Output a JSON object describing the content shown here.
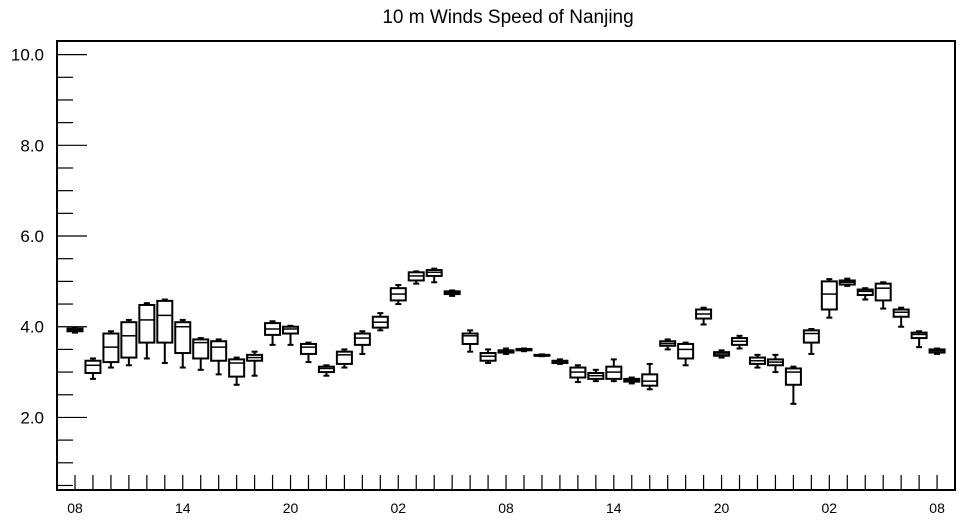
{
  "chart_data": {
    "type": "box",
    "title": "10 m Winds Speed of Nanjing",
    "xlabel": "",
    "ylabel": "",
    "ylim": [
      0.4,
      10.3
    ],
    "yticks": [
      2.0,
      4.0,
      6.0,
      8.0,
      10.0
    ],
    "yticklabels": [
      "2.0",
      "4.0",
      "6.0",
      "8.0",
      "10.0"
    ],
    "xticklabels": [
      "08",
      "14",
      "20",
      "02",
      "08",
      "14",
      "20",
      "02",
      "08"
    ],
    "x_label_hours": [
      0,
      6,
      12,
      18,
      24,
      30,
      36,
      42,
      48
    ],
    "grid": false,
    "boxes": [
      {
        "hour": 0,
        "min": 3.87,
        "q1": 3.9,
        "median": 3.93,
        "q3": 3.96,
        "max": 3.98
      },
      {
        "hour": 1,
        "min": 2.85,
        "q1": 2.98,
        "median": 3.15,
        "q3": 3.25,
        "max": 3.3
      },
      {
        "hour": 2,
        "min": 3.1,
        "q1": 3.22,
        "median": 3.55,
        "q3": 3.85,
        "max": 3.9
      },
      {
        "hour": 3,
        "min": 3.15,
        "q1": 3.32,
        "median": 3.8,
        "q3": 4.1,
        "max": 4.15
      },
      {
        "hour": 4,
        "min": 3.3,
        "q1": 3.65,
        "median": 4.15,
        "q3": 4.48,
        "max": 4.52
      },
      {
        "hour": 5,
        "min": 3.2,
        "q1": 3.65,
        "median": 4.25,
        "q3": 4.57,
        "max": 4.6
      },
      {
        "hour": 6,
        "min": 3.1,
        "q1": 3.42,
        "median": 4.0,
        "q3": 4.1,
        "max": 4.15
      },
      {
        "hour": 7,
        "min": 3.05,
        "q1": 3.3,
        "median": 3.65,
        "q3": 3.72,
        "max": 3.75
      },
      {
        "hour": 8,
        "min": 2.95,
        "q1": 3.25,
        "median": 3.55,
        "q3": 3.68,
        "max": 3.72
      },
      {
        "hour": 9,
        "min": 2.72,
        "q1": 2.9,
        "median": 3.2,
        "q3": 3.28,
        "max": 3.32
      },
      {
        "hour": 10,
        "min": 2.92,
        "q1": 3.25,
        "median": 3.32,
        "q3": 3.38,
        "max": 3.45
      },
      {
        "hour": 11,
        "min": 3.6,
        "q1": 3.82,
        "median": 3.95,
        "q3": 4.08,
        "max": 4.12
      },
      {
        "hour": 12,
        "min": 3.6,
        "q1": 3.85,
        "median": 3.95,
        "q3": 4.0,
        "max": 4.02
      },
      {
        "hour": 13,
        "min": 3.22,
        "q1": 3.4,
        "median": 3.55,
        "q3": 3.62,
        "max": 3.65
      },
      {
        "hour": 14,
        "min": 2.92,
        "q1": 3.0,
        "median": 3.08,
        "q3": 3.12,
        "max": 3.15
      },
      {
        "hour": 15,
        "min": 3.1,
        "q1": 3.18,
        "median": 3.38,
        "q3": 3.45,
        "max": 3.5
      },
      {
        "hour": 16,
        "min": 3.4,
        "q1": 3.6,
        "median": 3.75,
        "q3": 3.85,
        "max": 3.9
      },
      {
        "hour": 17,
        "min": 3.92,
        "q1": 3.98,
        "median": 4.1,
        "q3": 4.22,
        "max": 4.3
      },
      {
        "hour": 18,
        "min": 4.5,
        "q1": 4.58,
        "median": 4.72,
        "q3": 4.85,
        "max": 4.92
      },
      {
        "hour": 19,
        "min": 4.95,
        "q1": 5.02,
        "median": 5.12,
        "q3": 5.2,
        "max": 5.22
      },
      {
        "hour": 20,
        "min": 4.98,
        "q1": 5.12,
        "median": 5.2,
        "q3": 5.25,
        "max": 5.28
      },
      {
        "hour": 21,
        "min": 4.68,
        "q1": 4.72,
        "median": 4.75,
        "q3": 4.78,
        "max": 4.8
      },
      {
        "hour": 22,
        "min": 3.45,
        "q1": 3.62,
        "median": 3.8,
        "q3": 3.85,
        "max": 3.92
      },
      {
        "hour": 23,
        "min": 3.2,
        "q1": 3.25,
        "median": 3.35,
        "q3": 3.42,
        "max": 3.5
      },
      {
        "hour": 24,
        "min": 3.4,
        "q1": 3.43,
        "median": 3.46,
        "q3": 3.48,
        "max": 3.52
      },
      {
        "hour": 25,
        "min": 3.46,
        "q1": 3.48,
        "median": 3.5,
        "q3": 3.51,
        "max": 3.52
      },
      {
        "hour": 26,
        "min": 3.35,
        "q1": 3.36,
        "median": 3.37,
        "q3": 3.38,
        "max": 3.39
      },
      {
        "hour": 27,
        "min": 3.18,
        "q1": 3.2,
        "median": 3.22,
        "q3": 3.25,
        "max": 3.28
      },
      {
        "hour": 28,
        "min": 2.78,
        "q1": 2.88,
        "median": 3.0,
        "q3": 3.1,
        "max": 3.15
      },
      {
        "hour": 29,
        "min": 2.8,
        "q1": 2.85,
        "median": 2.92,
        "q3": 2.98,
        "max": 3.05
      },
      {
        "hour": 30,
        "min": 2.8,
        "q1": 2.85,
        "median": 3.0,
        "q3": 3.12,
        "max": 3.28
      },
      {
        "hour": 31,
        "min": 2.75,
        "q1": 2.79,
        "median": 2.82,
        "q3": 2.85,
        "max": 2.88
      },
      {
        "hour": 32,
        "min": 2.62,
        "q1": 2.7,
        "median": 2.8,
        "q3": 2.95,
        "max": 3.18
      },
      {
        "hour": 33,
        "min": 3.5,
        "q1": 3.58,
        "median": 3.63,
        "q3": 3.68,
        "max": 3.72
      },
      {
        "hour": 34,
        "min": 3.15,
        "q1": 3.3,
        "median": 3.5,
        "q3": 3.62,
        "max": 3.65
      },
      {
        "hour": 35,
        "min": 4.05,
        "q1": 4.18,
        "median": 4.28,
        "q3": 4.38,
        "max": 4.42
      },
      {
        "hour": 36,
        "min": 3.32,
        "q1": 3.36,
        "median": 3.4,
        "q3": 3.44,
        "max": 3.48
      },
      {
        "hour": 37,
        "min": 3.52,
        "q1": 3.6,
        "median": 3.68,
        "q3": 3.75,
        "max": 3.8
      },
      {
        "hour": 38,
        "min": 3.1,
        "q1": 3.18,
        "median": 3.25,
        "q3": 3.32,
        "max": 3.38
      },
      {
        "hour": 39,
        "min": 3.0,
        "q1": 3.15,
        "median": 3.22,
        "q3": 3.28,
        "max": 3.38
      },
      {
        "hour": 40,
        "min": 2.3,
        "q1": 2.72,
        "median": 3.0,
        "q3": 3.08,
        "max": 3.12
      },
      {
        "hour": 41,
        "min": 3.4,
        "q1": 3.65,
        "median": 3.85,
        "q3": 3.92,
        "max": 3.95
      },
      {
        "hour": 42,
        "min": 4.2,
        "q1": 4.38,
        "median": 4.72,
        "q3": 5.0,
        "max": 5.05
      },
      {
        "hour": 43,
        "min": 4.9,
        "q1": 4.93,
        "median": 4.98,
        "q3": 5.02,
        "max": 5.06
      },
      {
        "hour": 44,
        "min": 4.6,
        "q1": 4.7,
        "median": 4.78,
        "q3": 4.82,
        "max": 4.85
      },
      {
        "hour": 45,
        "min": 4.4,
        "q1": 4.58,
        "median": 4.85,
        "q3": 4.95,
        "max": 4.98
      },
      {
        "hour": 46,
        "min": 4.0,
        "q1": 4.22,
        "median": 4.32,
        "q3": 4.38,
        "max": 4.42
      },
      {
        "hour": 47,
        "min": 3.55,
        "q1": 3.75,
        "median": 3.83,
        "q3": 3.87,
        "max": 3.9
      },
      {
        "hour": 48,
        "min": 3.4,
        "q1": 3.43,
        "median": 3.47,
        "q3": 3.5,
        "max": 3.52
      }
    ]
  }
}
